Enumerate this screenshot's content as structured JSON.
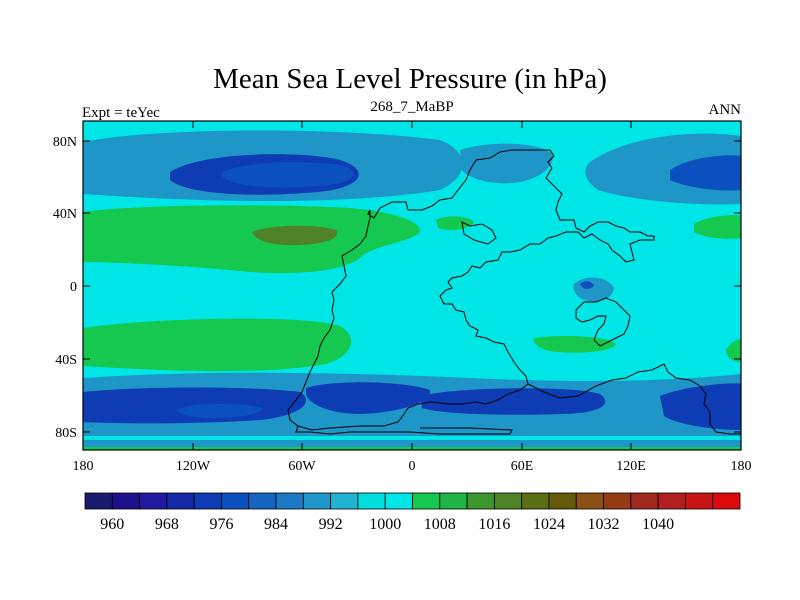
{
  "title": "Mean Sea Level Pressure (in hPa)",
  "left_label": "Expt = teYec",
  "center_label": "268_7_MaBP",
  "right_label": "ANN",
  "lat_ticks": [
    "80N",
    "40N",
    "0",
    "40S",
    "80S"
  ],
  "lon_ticks": [
    "180",
    "120W",
    "60W",
    "0",
    "60E",
    "120E",
    "180"
  ],
  "colorbar": {
    "colors": [
      "#191970",
      "#1e0f8c",
      "#1f1aa0",
      "#1428a8",
      "#0e3cb4",
      "#0a50be",
      "#1464c0",
      "#1e78c8",
      "#1e96c8",
      "#1eb4d2",
      "#00dede",
      "#00e6e6",
      "#14c850",
      "#1eb446",
      "#3c962d",
      "#508228",
      "#5a6e14",
      "#645a0a",
      "#8c5014",
      "#963c14",
      "#a0281e",
      "#b41e1e",
      "#c81414",
      "#dc0a0a"
    ],
    "labels": [
      "960",
      "968",
      "976",
      "984",
      "992",
      "1000",
      "1008",
      "1016",
      "1024",
      "1032",
      "1040"
    ]
  },
  "fill_colors": {
    "background": "#00e6e6",
    "low_mid": "#1e96c8",
    "low_deep": "#0e3cb4",
    "low_core": "#0a50be",
    "high": "#14c850",
    "high_core": "#508228",
    "coast": "#000000"
  }
}
